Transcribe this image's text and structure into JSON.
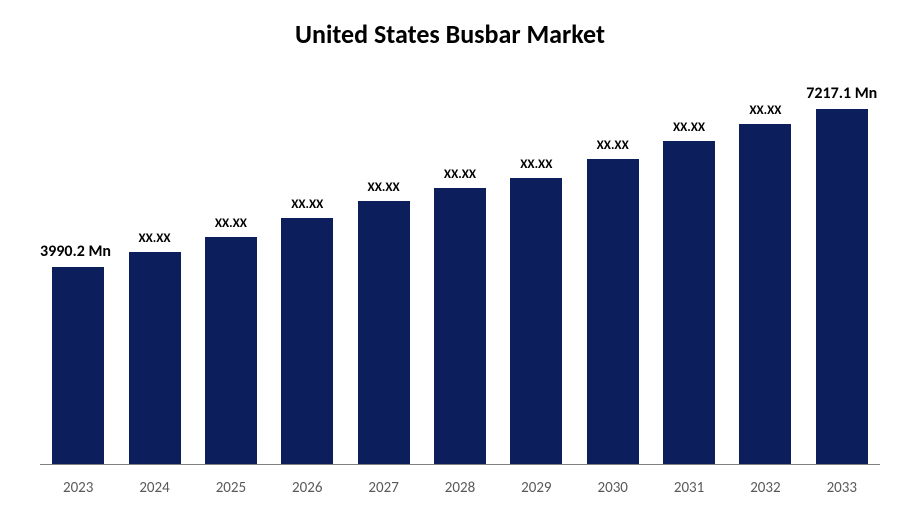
{
  "chart": {
    "type": "bar",
    "title": "United States Busbar Market",
    "title_fontsize": 26,
    "title_fontweight": 700,
    "title_color": "#000000",
    "background_color": "#ffffff",
    "bar_color": "#0c1e5c",
    "axis_line_color": "#808080",
    "x_label_color": "#595959",
    "x_label_fontsize": 15,
    "data_label_color": "#000000",
    "data_label_fontweight": 700,
    "data_label_fontsize_small": 13,
    "data_label_fontsize_large": 16,
    "bar_width_ratio": 0.68,
    "ylim": [
      0,
      8000
    ],
    "categories": [
      "2023",
      "2024",
      "2025",
      "2026",
      "2027",
      "2028",
      "2029",
      "2030",
      "2031",
      "2032",
      "2033"
    ],
    "values": [
      3990.2,
      4300,
      4600,
      5000,
      5350,
      5600,
      5800,
      6200,
      6550,
      6900,
      7217.1
    ],
    "value_labels": [
      "3990.2 Mn",
      "XX.XX",
      "XX.XX",
      "XX.XX",
      "XX.XX",
      "XX.XX",
      "XX.XX",
      "XX.XX",
      "XX.XX",
      "XX.XX",
      "7217.1 Mn"
    ],
    "emphasized_indices": [
      0,
      10
    ],
    "label_heights_pct": [
      35,
      38,
      40.5,
      44,
      47,
      49.5,
      51.5,
      55,
      58,
      60.5,
      63.5
    ]
  }
}
